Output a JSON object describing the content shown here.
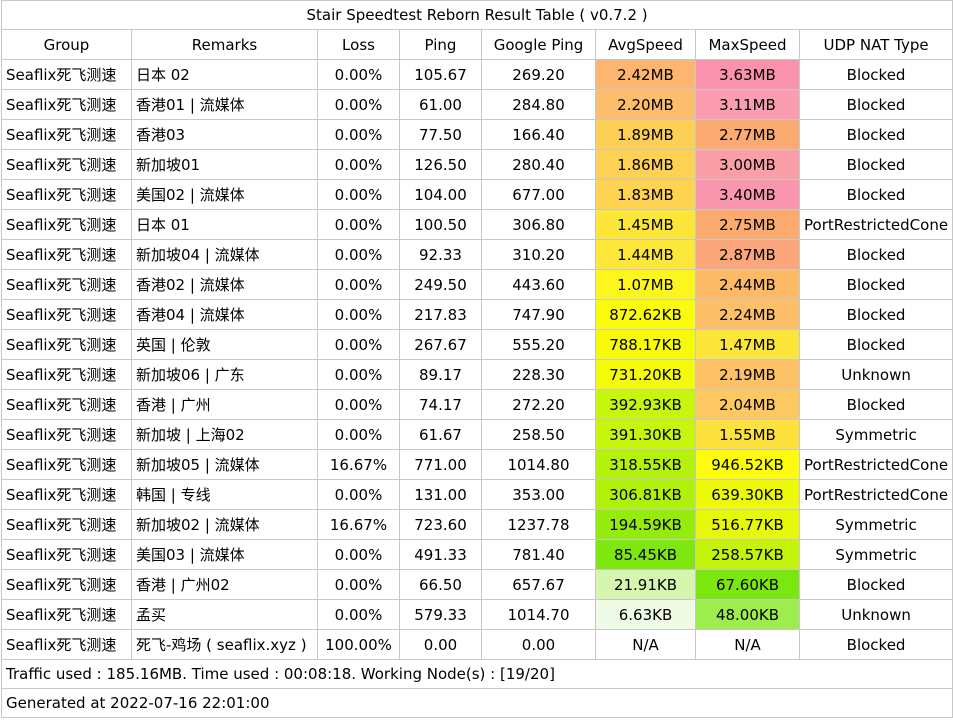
{
  "title": "Stair Speedtest Reborn Result Table ( v0.7.2 )",
  "columns": [
    "Group",
    "Remarks",
    "Loss",
    "Ping",
    "Google Ping",
    "AvgSpeed",
    "MaxSpeed",
    "UDP NAT Type"
  ],
  "rows": [
    {
      "group": "Seaflix死飞测速",
      "remarks": "日本 02",
      "loss": "0.00%",
      "ping": "105.67",
      "google_ping": "269.20",
      "avg": "2.42MB",
      "max": "3.63MB",
      "nat": "Blocked",
      "avg_color": "#fdb56f",
      "max_color": "#fa92ad"
    },
    {
      "group": "Seaflix死飞测速",
      "remarks": "香港01 | 流媒体",
      "loss": "0.00%",
      "ping": "61.00",
      "google_ping": "284.80",
      "avg": "2.20MB",
      "max": "3.11MB",
      "nat": "Blocked",
      "avg_color": "#fcbd6d",
      "max_color": "#fa9db0"
    },
    {
      "group": "Seaflix死飞测速",
      "remarks": "香港03",
      "loss": "0.00%",
      "ping": "77.50",
      "google_ping": "166.40",
      "avg": "1.89MB",
      "max": "2.77MB",
      "nat": "Blocked",
      "avg_color": "#fdcf55",
      "max_color": "#fbaa72"
    },
    {
      "group": "Seaflix死飞测速",
      "remarks": "新加坡01",
      "loss": "0.00%",
      "ping": "126.50",
      "google_ping": "280.40",
      "avg": "1.86MB",
      "max": "3.00MB",
      "nat": "Blocked",
      "avg_color": "#fdd153",
      "max_color": "#fa9fa8"
    },
    {
      "group": "Seaflix死飞测速",
      "remarks": "美国02 | 流媒体",
      "loss": "0.00%",
      "ping": "104.00",
      "google_ping": "677.00",
      "avg": "1.83MB",
      "max": "3.40MB",
      "nat": "Blocked",
      "avg_color": "#fdd351",
      "max_color": "#fa96ae"
    },
    {
      "group": "Seaflix死飞测速",
      "remarks": "日本 01",
      "loss": "0.00%",
      "ping": "100.50",
      "google_ping": "306.80",
      "avg": "1.45MB",
      "max": "2.75MB",
      "nat": "PortRestrictedCone",
      "avg_color": "#fde63a",
      "max_color": "#fbab6f"
    },
    {
      "group": "Seaflix死飞测速",
      "remarks": "新加坡04 | 流媒体",
      "loss": "0.00%",
      "ping": "92.33",
      "google_ping": "310.20",
      "avg": "1.44MB",
      "max": "2.87MB",
      "nat": "Blocked",
      "avg_color": "#fde73a",
      "max_color": "#fba77b"
    },
    {
      "group": "Seaflix死飞测速",
      "remarks": "香港02 | 流媒体",
      "loss": "0.00%",
      "ping": "249.50",
      "google_ping": "443.60",
      "avg": "1.07MB",
      "max": "2.44MB",
      "nat": "Blocked",
      "avg_color": "#fdf51e",
      "max_color": "#fcb966"
    },
    {
      "group": "Seaflix死飞测速",
      "remarks": "香港04 | 流媒体",
      "loss": "0.00%",
      "ping": "217.83",
      "google_ping": "747.90",
      "avg": "872.62KB",
      "max": "2.24MB",
      "nat": "Blocked",
      "avg_color": "#fbfc0c",
      "max_color": "#fdbf69"
    },
    {
      "group": "Seaflix死飞测速",
      "remarks": "英国 | 伦敦",
      "loss": "0.00%",
      "ping": "267.67",
      "google_ping": "555.20",
      "avg": "788.17KB",
      "max": "1.47MB",
      "nat": "Blocked",
      "avg_color": "#f7fb0a",
      "max_color": "#fde63b"
    },
    {
      "group": "Seaflix死飞测速",
      "remarks": "新加坡06 | 广东",
      "loss": "0.00%",
      "ping": "89.17",
      "google_ping": "228.30",
      "avg": "731.20KB",
      "max": "2.19MB",
      "nat": "Unknown",
      "avg_color": "#f3fa0a",
      "max_color": "#fdc266"
    },
    {
      "group": "Seaflix死飞测速",
      "remarks": "香港 | 广州",
      "loss": "0.00%",
      "ping": "74.17",
      "google_ping": "272.20",
      "avg": "392.93KB",
      "max": "2.04MB",
      "nat": "Blocked",
      "avg_color": "#c7f50c",
      "max_color": "#fdc862"
    },
    {
      "group": "Seaflix死飞测速",
      "remarks": "新加坡 | 上海02",
      "loss": "0.00%",
      "ping": "61.67",
      "google_ping": "258.50",
      "avg": "391.30KB",
      "max": "1.55MB",
      "nat": "Symmetric",
      "avg_color": "#c7f50c",
      "max_color": "#fde23d"
    },
    {
      "group": "Seaflix死飞测速",
      "remarks": "新加坡05 | 流媒体",
      "loss": "16.67%",
      "ping": "771.00",
      "google_ping": "1014.80",
      "avg": "318.55KB",
      "max": "946.52KB",
      "nat": "PortRestrictedCone",
      "avg_color": "#b3f20c",
      "max_color": "#fcfc0c"
    },
    {
      "group": "Seaflix死飞测速",
      "remarks": "韩国 | 专线",
      "loss": "0.00%",
      "ping": "131.00",
      "google_ping": "353.00",
      "avg": "306.81KB",
      "max": "639.30KB",
      "nat": "PortRestrictedCone",
      "avg_color": "#b0f10c",
      "max_color": "#ecf90b"
    },
    {
      "group": "Seaflix死飞测速",
      "remarks": "新加坡02 | 流媒体",
      "loss": "16.67%",
      "ping": "723.60",
      "google_ping": "1237.78",
      "avg": "194.59KB",
      "max": "516.77KB",
      "nat": "Symmetric",
      "avg_color": "#94ec0c",
      "max_color": "#e6f80b"
    },
    {
      "group": "Seaflix死飞测速",
      "remarks": "美国03 | 流媒体",
      "loss": "0.00%",
      "ping": "491.33",
      "google_ping": "781.40",
      "avg": "85.45KB",
      "max": "258.57KB",
      "nat": "Symmetric",
      "avg_color": "#7ee70f",
      "max_color": "#c3f40c"
    },
    {
      "group": "Seaflix死飞测速",
      "remarks": "香港 | 广州02",
      "loss": "0.00%",
      "ping": "66.50",
      "google_ping": "657.67",
      "avg": "21.91KB",
      "max": "67.60KB",
      "nat": "Blocked",
      "avg_color": "#d6f6b0",
      "max_color": "#7ae810"
    },
    {
      "group": "Seaflix死飞测速",
      "remarks": "孟买",
      "loss": "0.00%",
      "ping": "579.33",
      "google_ping": "1014.70",
      "avg": "6.63KB",
      "max": "48.00KB",
      "nat": "Unknown",
      "avg_color": "#f0fbe6",
      "max_color": "#9ded4c"
    },
    {
      "group": "Seaflix死飞测速",
      "remarks": "死飞-鸡场 ( seaflix.xyz )",
      "loss": "100.00%",
      "ping": "0.00",
      "google_ping": "0.00",
      "avg": "N/A",
      "max": "N/A",
      "nat": "Blocked",
      "avg_color": "#ffffff",
      "max_color": "#ffffff"
    }
  ],
  "footer": {
    "traffic": "Traffic used : 185.16MB. Time used : 00:08:18. Working Node(s) : [19/20]",
    "generated": "Generated at 2022-07-16 22:01:00"
  }
}
